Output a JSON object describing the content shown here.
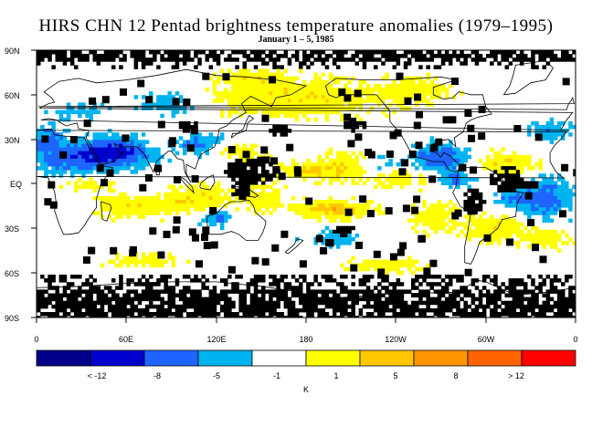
{
  "title": "HIRS CHN 12 Pentad brightness temperature anomalies (1979–1995)",
  "subtitle": "January 1 – 5, 1985",
  "lat_labels": [
    "90N",
    "60N",
    "30N",
    "EQ",
    "30S",
    "60S",
    "90S"
  ],
  "lon_labels": [
    "0",
    "60E",
    "120E",
    "180",
    "120W",
    "60W",
    "0"
  ],
  "colorbar": {
    "colors": [
      "#00008b",
      "#0000cd",
      "#1e64ff",
      "#00b4f0",
      "#ffffff",
      "#ffff00",
      "#ffc800",
      "#ff9600",
      "#ff6400",
      "#ff0000"
    ],
    "labels": [
      "< -12",
      "-8",
      "-5",
      "-1",
      "1",
      "5",
      "8",
      "> 12"
    ],
    "units": "K"
  },
  "missing_color": "#000000",
  "land_outline_color": "#000000"
}
